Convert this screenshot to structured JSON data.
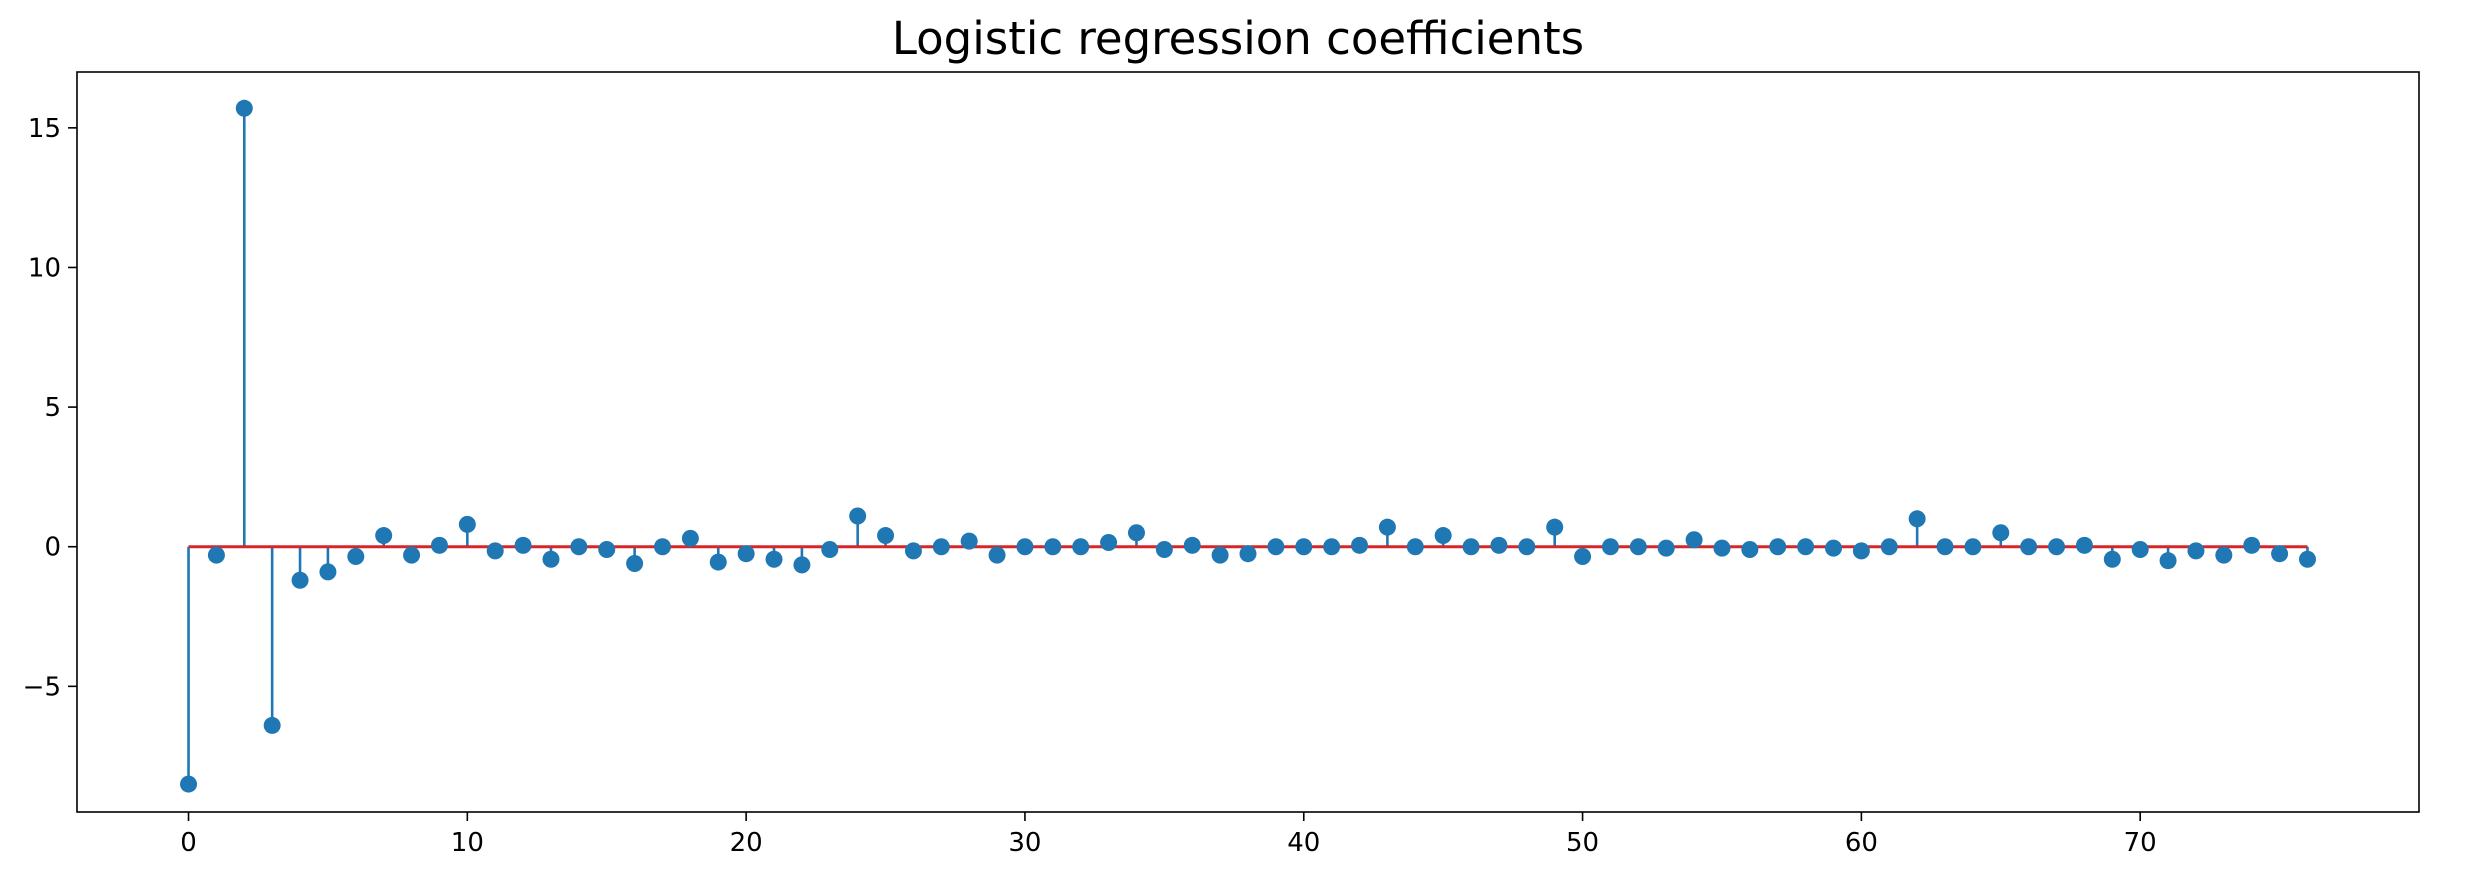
{
  "chart_data": {
    "type": "stem",
    "title": "Logistic regression coefficients",
    "xlabel": "",
    "ylabel": "",
    "xlim": [
      -4,
      80
    ],
    "ylim": [
      -9.5,
      17
    ],
    "x_ticks": [
      0,
      10,
      20,
      30,
      40,
      50,
      60,
      70
    ],
    "y_ticks": [
      -5,
      0,
      5,
      10,
      15
    ],
    "y_tick_labels": [
      "−5",
      "0",
      "5",
      "10",
      "15"
    ],
    "baseline": 0,
    "grid": false,
    "legend": "none",
    "colors": {
      "stem": "#1f77b4",
      "marker": "#1f77b4",
      "baseline": "#d62728"
    },
    "x": [
      0,
      1,
      2,
      3,
      4,
      5,
      6,
      7,
      8,
      9,
      10,
      11,
      12,
      13,
      14,
      15,
      16,
      17,
      18,
      19,
      20,
      21,
      22,
      23,
      24,
      25,
      26,
      27,
      28,
      29,
      30,
      31,
      32,
      33,
      34,
      35,
      36,
      37,
      38,
      39,
      40,
      41,
      42,
      43,
      44,
      45,
      46,
      47,
      48,
      49,
      50,
      51,
      52,
      53,
      54,
      55,
      56,
      57,
      58,
      59,
      60,
      61,
      62,
      63,
      64,
      65,
      66,
      67,
      68,
      69,
      70,
      71,
      72,
      73,
      74,
      75,
      76
    ],
    "values": [
      -8.5,
      -0.3,
      15.7,
      -6.4,
      -1.2,
      -0.9,
      -0.35,
      0.4,
      -0.3,
      0.05,
      0.8,
      -0.15,
      0.05,
      -0.45,
      0.0,
      -0.1,
      -0.6,
      0.0,
      0.3,
      -0.55,
      -0.25,
      -0.45,
      -0.65,
      -0.1,
      1.1,
      0.4,
      -0.15,
      0.0,
      0.2,
      -0.3,
      0.0,
      0.0,
      0.0,
      0.15,
      0.5,
      -0.1,
      0.05,
      -0.3,
      -0.25,
      0.0,
      0.0,
      0.0,
      0.05,
      0.7,
      0.0,
      0.4,
      0.0,
      0.05,
      0.0,
      0.7,
      -0.35,
      0.0,
      0.0,
      -0.05,
      0.25,
      -0.05,
      -0.1,
      0.0,
      0.0,
      -0.05,
      -0.15,
      0.0,
      1.0,
      0.0,
      0.0,
      0.5,
      0.0,
      0.0,
      0.05,
      -0.45,
      -0.1,
      -0.5,
      -0.15,
      -0.3,
      0.05,
      -0.25,
      -0.45
    ]
  }
}
